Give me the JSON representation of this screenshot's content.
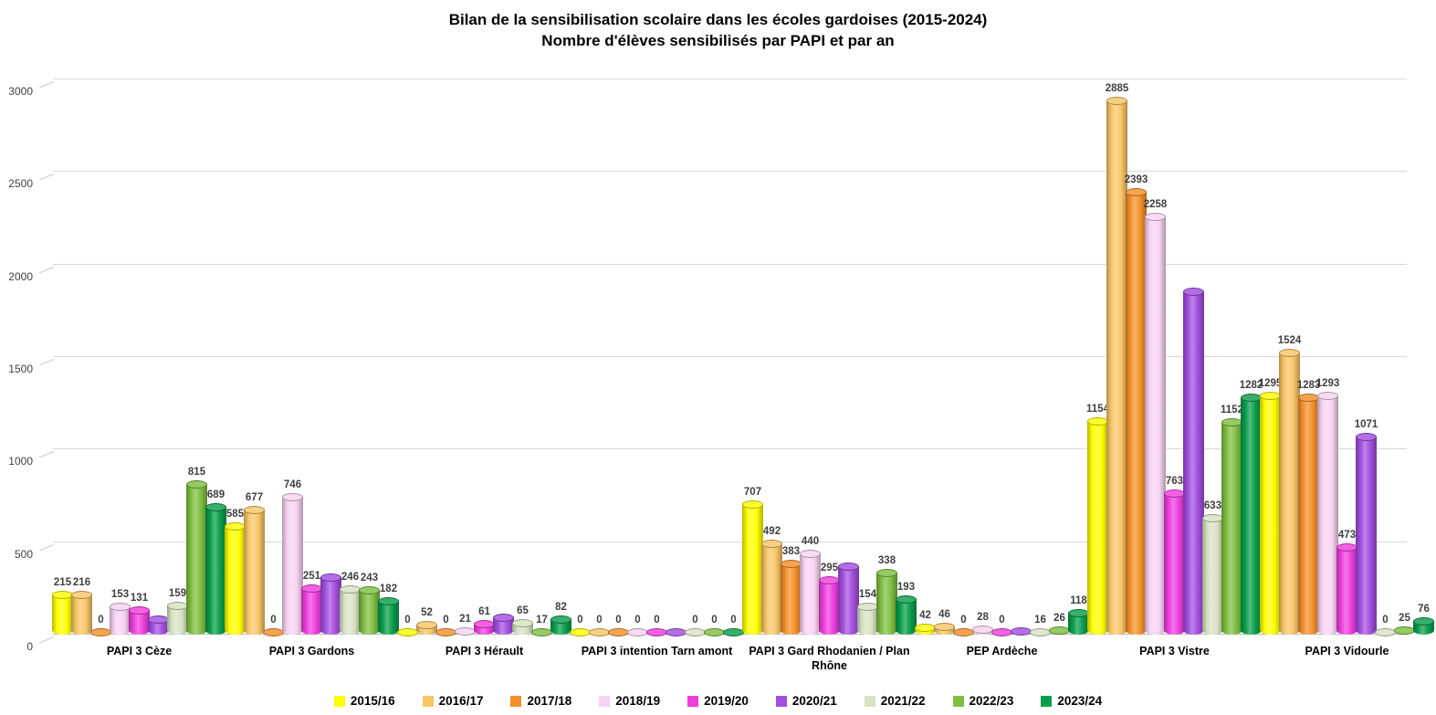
{
  "chart_data": {
    "type": "bar",
    "title": "Bilan de la sensibilisation scolaire dans les écoles gardoises (2015-2024)",
    "subtitle": "Nombre d'élèves sensibilisés par PAPI et par an",
    "style": "3d-cylinder-grouped",
    "categories": [
      "PAPI 3 Cèze",
      "PAPI 3 Gardons",
      "PAPI 3 Hérault",
      "PAPI 3 intention Tarn amont",
      "PAPI 3 Gard Rhodanien / Plan Rhône",
      "PEP Ardèche",
      "PAPI 3 Vistre",
      "PAPI 3 Vidourle"
    ],
    "series": [
      {
        "name": "2015/16",
        "color": "#FFFF00",
        "values": [
          215,
          585,
          0,
          0,
          707,
          42,
          1154,
          1295
        ],
        "labels": [
          "215",
          "585",
          "0",
          "0",
          "707",
          "42",
          "1154",
          "1295"
        ]
      },
      {
        "name": "2016/17",
        "color": "#F8C666",
        "values": [
          216,
          677,
          52,
          0,
          492,
          46,
          2885,
          1524
        ],
        "labels": [
          "216",
          "677",
          "52",
          "0",
          "492",
          "46",
          "2885",
          "1524"
        ]
      },
      {
        "name": "2017/18",
        "color": "#F5902A",
        "values": [
          0,
          0,
          0,
          0,
          383,
          0,
          2393,
          1283
        ],
        "labels": [
          "0",
          "0",
          "0",
          "0",
          "383",
          "0",
          "2393",
          "1283"
        ]
      },
      {
        "name": "2018/19",
        "color": "#F8D3F2",
        "values": [
          153,
          746,
          21,
          0,
          440,
          28,
          2258,
          1293
        ],
        "labels": [
          "153",
          "746",
          "21",
          "0",
          "440",
          "28",
          "2258",
          "1293"
        ]
      },
      {
        "name": "2019/20",
        "color": "#EF3EDE",
        "values": [
          131,
          251,
          61,
          0,
          295,
          0,
          763,
          473
        ],
        "labels": [
          "131",
          "251",
          "61",
          "0",
          "295",
          "0",
          "763",
          "473"
        ]
      },
      {
        "name": "2020/21",
        "color": "#A34FE0",
        "values": [
          85,
          310,
          95,
          0,
          370,
          20,
          1855,
          1071
        ],
        "labels": [
          "",
          "",
          "",
          "",
          "",
          "",
          "",
          "1071"
        ],
        "note": "labels hidden in source chart; unlabeled values estimated from bar heights"
      },
      {
        "name": "2021/22",
        "color": "#D9E2C5",
        "values": [
          159,
          246,
          65,
          0,
          154,
          16,
          633,
          0
        ],
        "labels": [
          "159",
          "246",
          "65",
          "0",
          "154",
          "16",
          "633",
          "0"
        ]
      },
      {
        "name": "2022/23",
        "color": "#7FBE41",
        "values": [
          815,
          243,
          17,
          0,
          338,
          26,
          1152,
          25
        ],
        "labels": [
          "815",
          "243",
          "17",
          "0",
          "338",
          "26",
          "1152",
          "25"
        ]
      },
      {
        "name": "2023/24",
        "color": "#0A9E4C",
        "values": [
          689,
          182,
          82,
          0,
          193,
          118,
          1282,
          76
        ],
        "labels": [
          "689",
          "182",
          "82",
          "0",
          "193",
          "118",
          "1282",
          "76"
        ]
      }
    ],
    "ylim": [
      0,
      3000
    ],
    "yticks": [
      0,
      500,
      1000,
      1500,
      2000,
      2500,
      3000
    ],
    "grid": true,
    "legend_position": "bottom",
    "colors": {
      "grid": "#d9d9d9",
      "baseline": "#b7b7b7",
      "tick_text": "#404040",
      "data_label": "#3f3f3f",
      "background": "#ffffff"
    }
  }
}
